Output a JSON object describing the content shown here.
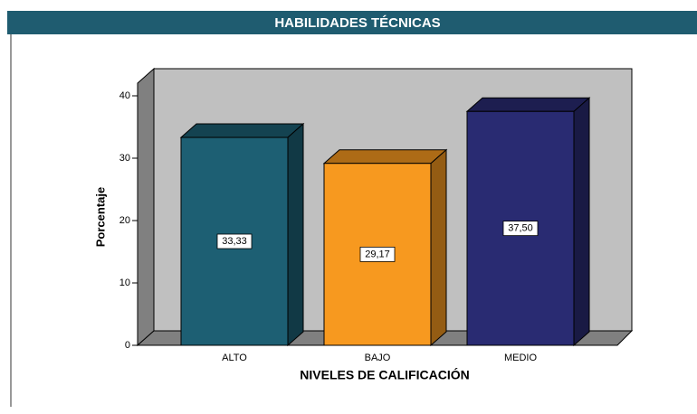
{
  "chart_data": {
    "type": "bar3d",
    "title": "HABILIDADES TÉCNICAS",
    "categories": [
      "ALTO",
      "BAJO",
      "MEDIO"
    ],
    "values": [
      33.33,
      29.17,
      37.5
    ],
    "value_labels": [
      "33,33",
      "29,17",
      "37,50"
    ],
    "colors": [
      "#1d5f73",
      "#f7991f",
      "#292b72"
    ],
    "xlabel": "NIVELES DE CALIFICACIÓN",
    "ylabel": "Porcentaje",
    "ylim": [
      0,
      40
    ],
    "yticks": [
      0,
      10,
      20,
      30,
      40
    ]
  }
}
